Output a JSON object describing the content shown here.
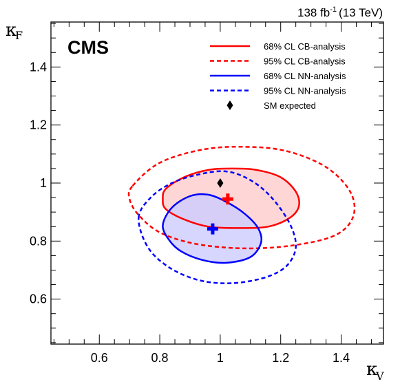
{
  "chart_data": {
    "type": "contour",
    "experiment_label": "CMS",
    "lumi_label": "138 fb",
    "lumi_exponent": "-1",
    "energy_label": "(13 TeV)",
    "x_axis": {
      "symbol": "κ",
      "subscript": "V",
      "range": [
        0.44,
        1.54
      ],
      "ticks": [
        "0.6",
        "0.8",
        "1",
        "1.2",
        "1.4"
      ]
    },
    "y_axis": {
      "symbol": "κ",
      "subscript": "F",
      "range": [
        0.445,
        1.555
      ],
      "ticks": [
        "0.6",
        "0.8",
        "1",
        "1.2",
        "1.4"
      ]
    },
    "series": [
      {
        "name": "68% CL CB-analysis",
        "color": "#ff0000",
        "line": "solid",
        "filled": true,
        "fill": "#ffcccc",
        "best_fit": [
          1.025,
          0.945
        ],
        "contour": [
          [
            0.82,
            0.98
          ],
          [
            0.88,
            1.02
          ],
          [
            0.96,
            1.045
          ],
          [
            1.04,
            1.05
          ],
          [
            1.12,
            1.045
          ],
          [
            1.2,
            1.02
          ],
          [
            1.25,
            0.97
          ],
          [
            1.26,
            0.92
          ],
          [
            1.23,
            0.88
          ],
          [
            1.16,
            0.85
          ],
          [
            1.06,
            0.845
          ],
          [
            0.96,
            0.85
          ],
          [
            0.88,
            0.875
          ],
          [
            0.82,
            0.91
          ],
          [
            0.81,
            0.945
          ]
        ]
      },
      {
        "name": "95% CL CB-analysis",
        "color": "#ff0000",
        "line": "dashed",
        "filled": false,
        "contour": [
          [
            0.71,
            0.99
          ],
          [
            0.8,
            1.07
          ],
          [
            0.94,
            1.115
          ],
          [
            1.08,
            1.125
          ],
          [
            1.22,
            1.11
          ],
          [
            1.35,
            1.055
          ],
          [
            1.43,
            0.97
          ],
          [
            1.44,
            0.885
          ],
          [
            1.38,
            0.82
          ],
          [
            1.24,
            0.785
          ],
          [
            1.08,
            0.775
          ],
          [
            0.92,
            0.79
          ],
          [
            0.8,
            0.83
          ],
          [
            0.73,
            0.89
          ],
          [
            0.7,
            0.945
          ]
        ]
      },
      {
        "name": "68% CL NN-analysis",
        "color": "#0000ff",
        "line": "solid",
        "filled": true,
        "fill": "#ccccff",
        "best_fit": [
          0.975,
          0.842
        ],
        "contour": [
          [
            0.81,
            0.855
          ],
          [
            0.84,
            0.915
          ],
          [
            0.9,
            0.955
          ],
          [
            0.96,
            0.96
          ],
          [
            1.02,
            0.935
          ],
          [
            1.08,
            0.895
          ],
          [
            1.125,
            0.845
          ],
          [
            1.135,
            0.795
          ],
          [
            1.1,
            0.745
          ],
          [
            1.02,
            0.725
          ],
          [
            0.94,
            0.735
          ],
          [
            0.87,
            0.765
          ],
          [
            0.83,
            0.805
          ]
        ]
      },
      {
        "name": "95% CL NN-analysis",
        "color": "#0000ff",
        "line": "dashed",
        "filled": false,
        "contour": [
          [
            0.73,
            0.88
          ],
          [
            0.77,
            0.95
          ],
          [
            0.84,
            1.0
          ],
          [
            0.93,
            1.03
          ],
          [
            1.02,
            1.04
          ],
          [
            1.1,
            1.01
          ],
          [
            1.17,
            0.95
          ],
          [
            1.23,
            0.86
          ],
          [
            1.25,
            0.78
          ],
          [
            1.22,
            0.715
          ],
          [
            1.15,
            0.675
          ],
          [
            1.04,
            0.655
          ],
          [
            0.93,
            0.665
          ],
          [
            0.83,
            0.71
          ],
          [
            0.76,
            0.78
          ]
        ]
      },
      {
        "name": "SM expected",
        "color": "#000000",
        "marker": "diamond",
        "point": [
          1.0,
          1.0
        ]
      }
    ],
    "grid": false,
    "legend_position": "top-right"
  }
}
